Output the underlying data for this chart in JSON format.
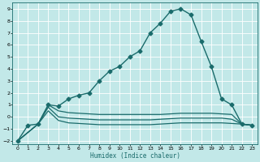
{
  "title": "",
  "xlabel": "Humidex (Indice chaleur)",
  "ylabel": "",
  "bg_color": "#c2e8e8",
  "grid_color": "#ffffff",
  "line_color": "#1a6b6b",
  "xlim": [
    -0.5,
    23.5
  ],
  "ylim": [
    -2.3,
    9.5
  ],
  "xticks": [
    0,
    1,
    2,
    3,
    4,
    5,
    6,
    7,
    8,
    9,
    10,
    11,
    12,
    13,
    14,
    15,
    16,
    17,
    18,
    19,
    20,
    21,
    22,
    23
  ],
  "yticks": [
    -2,
    -1,
    0,
    1,
    2,
    3,
    4,
    5,
    6,
    7,
    8,
    9
  ],
  "series": [
    {
      "x": [
        0,
        1,
        2,
        3,
        4,
        5,
        6,
        7,
        8,
        9,
        10,
        11,
        12,
        13,
        14,
        15,
        16,
        17,
        18,
        19,
        20,
        21,
        22,
        23
      ],
      "y": [
        -2,
        -0.7,
        -0.6,
        1.0,
        0.9,
        1.5,
        1.8,
        2.0,
        3.0,
        3.8,
        4.2,
        5.0,
        5.5,
        7.0,
        7.8,
        8.8,
        9.0,
        8.5,
        6.3,
        4.2,
        1.5,
        1.0,
        -0.6,
        -0.7
      ],
      "marker": "D",
      "markersize": 2.5,
      "linewidth": 1.0
    },
    {
      "x": [
        0,
        2,
        3,
        4,
        5,
        6,
        7,
        8,
        9,
        10,
        11,
        12,
        13,
        14,
        15,
        16,
        17,
        18,
        19,
        20,
        21,
        22,
        23
      ],
      "y": [
        -2,
        -0.6,
        1.0,
        0.5,
        0.35,
        0.3,
        0.25,
        0.2,
        0.2,
        0.2,
        0.2,
        0.2,
        0.2,
        0.2,
        0.25,
        0.3,
        0.3,
        0.3,
        0.3,
        0.25,
        0.2,
        -0.6,
        -0.7
      ],
      "marker": null,
      "markersize": 0,
      "linewidth": 0.9
    },
    {
      "x": [
        0,
        2,
        3,
        4,
        5,
        6,
        7,
        8,
        9,
        10,
        11,
        12,
        13,
        14,
        15,
        16,
        17,
        18,
        19,
        20,
        21,
        22,
        23
      ],
      "y": [
        -2,
        -0.6,
        0.8,
        0.0,
        -0.1,
        -0.15,
        -0.2,
        -0.25,
        -0.25,
        -0.25,
        -0.25,
        -0.25,
        -0.25,
        -0.2,
        -0.15,
        -0.1,
        -0.1,
        -0.1,
        -0.1,
        -0.1,
        -0.2,
        -0.6,
        -0.7
      ],
      "marker": null,
      "markersize": 0,
      "linewidth": 0.9
    },
    {
      "x": [
        0,
        2,
        3,
        4,
        5,
        6,
        7,
        8,
        9,
        10,
        11,
        12,
        13,
        14,
        15,
        16,
        17,
        18,
        19,
        20,
        21,
        22,
        23
      ],
      "y": [
        -2,
        -0.6,
        0.5,
        -0.3,
        -0.5,
        -0.55,
        -0.6,
        -0.65,
        -0.65,
        -0.65,
        -0.65,
        -0.65,
        -0.65,
        -0.6,
        -0.55,
        -0.5,
        -0.5,
        -0.5,
        -0.5,
        -0.5,
        -0.55,
        -0.6,
        -0.7
      ],
      "marker": null,
      "markersize": 0,
      "linewidth": 0.9
    }
  ]
}
